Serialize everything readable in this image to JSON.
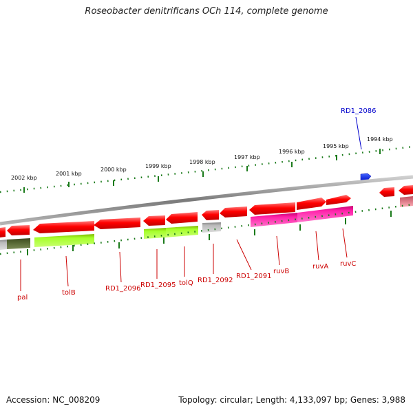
{
  "title": "Roseobacter denitrificans OCh 114, complete genome",
  "footer": {
    "accession": "Accession: NC_008209",
    "summary": "Topology: circular; Length: 4,133,097 bp; Genes: 3,988"
  },
  "scale_labels": [
    "2002 kbp",
    "2001 kbp",
    "2000 kbp",
    "1999 kbp",
    "1998 kbp",
    "1997 kbp",
    "1996 kbp",
    "1995 kbp",
    "1994 kbp"
  ],
  "genes": [
    {
      "name": "pal",
      "color": "#cc0000"
    },
    {
      "name": "tolB",
      "color": "#cc0000"
    },
    {
      "name": "RD1_2096",
      "color": "#cc0000"
    },
    {
      "name": "RD1_2095",
      "color": "#cc0000"
    },
    {
      "name": "tolQ",
      "color": "#cc0000"
    },
    {
      "name": "RD1_2092",
      "color": "#cc0000"
    },
    {
      "name": "RD1_2091",
      "color": "#cc0000"
    },
    {
      "name": "ruvB",
      "color": "#cc0000"
    },
    {
      "name": "ruvA",
      "color": "#cc0000"
    },
    {
      "name": "ruvC",
      "color": "#cc0000"
    },
    {
      "name": "RD1_2086",
      "color": "#0000cc"
    }
  ],
  "colors": {
    "cds": "#ff0000",
    "cog_green": "#99ff22",
    "cog_pink": "#ff22aa",
    "cog_gray": "#bbbbbb",
    "cog_dark": "#556633",
    "highlight": "#0022ff",
    "backbone": "#8a8a8a",
    "ticks": "#1a7a1a"
  }
}
